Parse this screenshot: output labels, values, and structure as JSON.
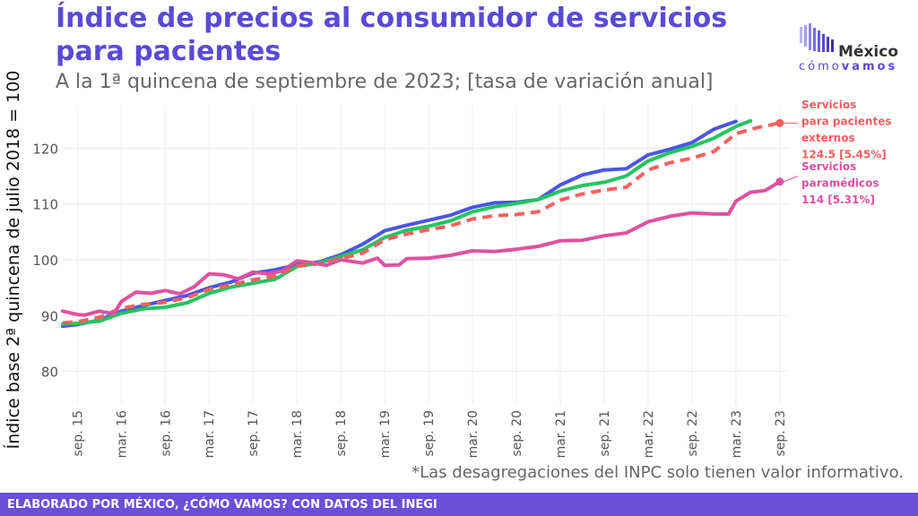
{
  "header": {
    "title": "Índice de precios al consumidor de servicios\n para pacientes",
    "subtitle": "A la 1ª quincena de septiembre de 2023; [tasa de variación anual]"
  },
  "logo": {
    "name": "México",
    "tag_light": "cómo",
    "tag_bold": "vamos",
    "color": "#5b49d6"
  },
  "footnote": "*Las desagregaciones del INPC solo tienen valor informativo.",
  "footer": {
    "text": "ELABORADO POR MÉXICO, ¿CÓMO VAMOS? CON DATOS DEL INEGI",
    "color": "#6a4fd8"
  },
  "chart_data": {
    "type": "line",
    "ylabel": "Índice base 2ª quincena de julio 2018 = 100",
    "xlabel": "",
    "x_ticks": [
      "sep. 15",
      "mar. 16",
      "sep. 16",
      "mar. 17",
      "sep. 17",
      "mar. 18",
      "sep. 18",
      "mar. 19",
      "sep. 19",
      "mar. 20",
      "sep. 20",
      "mar. 21",
      "sep. 21",
      "mar. 22",
      "sep. 22",
      "mar. 23",
      "sep. 23"
    ],
    "x_range": [
      "2015-07",
      "2023-10"
    ],
    "y_ticks": [
      80,
      90,
      100,
      110,
      120
    ],
    "ylim": [
      74,
      126
    ],
    "grid": true,
    "series": [
      {
        "key": "blue",
        "color": "#4a55e6",
        "dashed": false,
        "points": [
          [
            "2015-07",
            88.1
          ],
          [
            "2015-09",
            88.4
          ],
          [
            "2015-12",
            89.2
          ],
          [
            "2016-03",
            90.8
          ],
          [
            "2016-06",
            91.8
          ],
          [
            "2016-09",
            92.7
          ],
          [
            "2016-12",
            93.6
          ],
          [
            "2017-03",
            95.0
          ],
          [
            "2017-06",
            96.0
          ],
          [
            "2017-09",
            97.6
          ],
          [
            "2017-12",
            98.2
          ],
          [
            "2018-03",
            99.1
          ],
          [
            "2018-06",
            99.6
          ],
          [
            "2018-09",
            100.9
          ],
          [
            "2018-12",
            102.8
          ],
          [
            "2019-03",
            105.2
          ],
          [
            "2019-06",
            106.2
          ],
          [
            "2019-09",
            107.1
          ],
          [
            "2019-12",
            108.0
          ],
          [
            "2020-03",
            109.4
          ],
          [
            "2020-06",
            110.2
          ],
          [
            "2020-09",
            110.3
          ],
          [
            "2020-12",
            110.8
          ],
          [
            "2021-03",
            113.4
          ],
          [
            "2021-06",
            115.2
          ],
          [
            "2021-09",
            116.1
          ],
          [
            "2021-12",
            116.3
          ],
          [
            "2022-03",
            118.8
          ],
          [
            "2022-06",
            119.8
          ],
          [
            "2022-09",
            121.0
          ],
          [
            "2022-12",
            123.4
          ],
          [
            "2023-03",
            124.8
          ]
        ]
      },
      {
        "key": "green",
        "color": "#22c55e",
        "dashed": false,
        "points": [
          [
            "2015-07",
            88.5
          ],
          [
            "2015-09",
            88.6
          ],
          [
            "2015-12",
            89.0
          ],
          [
            "2016-03",
            90.4
          ],
          [
            "2016-06",
            91.2
          ],
          [
            "2016-09",
            91.5
          ],
          [
            "2016-12",
            92.3
          ],
          [
            "2017-03",
            94.0
          ],
          [
            "2017-06",
            95.1
          ],
          [
            "2017-09",
            95.8
          ],
          [
            "2017-12",
            96.5
          ],
          [
            "2018-03",
            98.8
          ],
          [
            "2018-06",
            99.4
          ],
          [
            "2018-09",
            100.6
          ],
          [
            "2018-12",
            101.8
          ],
          [
            "2019-03",
            104.0
          ],
          [
            "2019-06",
            105.3
          ],
          [
            "2019-09",
            106.0
          ],
          [
            "2019-12",
            107.0
          ],
          [
            "2020-03",
            108.6
          ],
          [
            "2020-06",
            109.5
          ],
          [
            "2020-09",
            110.1
          ],
          [
            "2020-12",
            110.8
          ],
          [
            "2021-03",
            112.3
          ],
          [
            "2021-06",
            113.3
          ],
          [
            "2021-09",
            113.9
          ],
          [
            "2021-12",
            115.0
          ],
          [
            "2022-03",
            117.7
          ],
          [
            "2022-06",
            119.2
          ],
          [
            "2022-09",
            120.3
          ],
          [
            "2022-12",
            121.8
          ],
          [
            "2023-03",
            123.9
          ],
          [
            "2023-05",
            124.9
          ]
        ]
      },
      {
        "key": "red",
        "color": "#fa5f5f",
        "dashed": true,
        "points": [
          [
            "2015-07",
            88.7
          ],
          [
            "2015-09",
            88.9
          ],
          [
            "2015-12",
            89.7
          ],
          [
            "2016-03",
            91.3
          ],
          [
            "2016-06",
            92.0
          ],
          [
            "2016-09",
            92.4
          ],
          [
            "2016-12",
            93.2
          ],
          [
            "2017-03",
            94.7
          ],
          [
            "2017-06",
            95.5
          ],
          [
            "2017-09",
            96.4
          ],
          [
            "2017-12",
            97.1
          ],
          [
            "2018-03",
            98.9
          ],
          [
            "2018-06",
            99.3
          ],
          [
            "2018-09",
            100.2
          ],
          [
            "2018-12",
            101.2
          ],
          [
            "2019-03",
            103.6
          ],
          [
            "2019-06",
            104.6
          ],
          [
            "2019-09",
            105.4
          ],
          [
            "2019-12",
            106.1
          ],
          [
            "2020-03",
            107.3
          ],
          [
            "2020-06",
            107.9
          ],
          [
            "2020-09",
            108.1
          ],
          [
            "2020-12",
            108.6
          ],
          [
            "2021-03",
            110.7
          ],
          [
            "2021-06",
            111.8
          ],
          [
            "2021-09",
            112.5
          ],
          [
            "2021-12",
            113.0
          ],
          [
            "2022-03",
            116.1
          ],
          [
            "2022-06",
            117.4
          ],
          [
            "2022-09",
            118.2
          ],
          [
            "2022-12",
            119.4
          ],
          [
            "2023-03",
            122.6
          ],
          [
            "2023-06",
            123.7
          ],
          [
            "2023-09",
            124.5
          ]
        ]
      },
      {
        "key": "pink",
        "color": "#e0519f",
        "dashed": false,
        "points": [
          [
            "2015-07",
            90.8
          ],
          [
            "2015-09",
            90.2
          ],
          [
            "2015-10",
            90.1
          ],
          [
            "2015-12",
            90.8
          ],
          [
            "2016-02",
            90.3
          ],
          [
            "2016-03",
            92.5
          ],
          [
            "2016-05",
            94.2
          ],
          [
            "2016-07",
            94.0
          ],
          [
            "2016-09",
            94.5
          ],
          [
            "2016-11",
            93.9
          ],
          [
            "2017-01",
            95.2
          ],
          [
            "2017-03",
            97.5
          ],
          [
            "2017-05",
            97.3
          ],
          [
            "2017-07",
            96.6
          ],
          [
            "2017-09",
            97.8
          ],
          [
            "2017-11",
            97.5
          ],
          [
            "2018-01",
            98.0
          ],
          [
            "2018-03",
            99.8
          ],
          [
            "2018-05",
            99.5
          ],
          [
            "2018-07",
            99.0
          ],
          [
            "2018-09",
            100.0
          ],
          [
            "2018-12",
            99.4
          ],
          [
            "2019-02",
            100.3
          ],
          [
            "2019-03",
            99.0
          ],
          [
            "2019-05",
            99.1
          ],
          [
            "2019-06",
            100.2
          ],
          [
            "2019-09",
            100.3
          ],
          [
            "2019-12",
            100.8
          ],
          [
            "2020-03",
            101.6
          ],
          [
            "2020-06",
            101.5
          ],
          [
            "2020-09",
            101.9
          ],
          [
            "2020-12",
            102.4
          ],
          [
            "2021-03",
            103.4
          ],
          [
            "2021-06",
            103.5
          ],
          [
            "2021-09",
            104.3
          ],
          [
            "2021-12",
            104.8
          ],
          [
            "2022-03",
            106.8
          ],
          [
            "2022-06",
            107.8
          ],
          [
            "2022-09",
            108.4
          ],
          [
            "2022-12",
            108.2
          ],
          [
            "2023-02",
            108.2
          ],
          [
            "2023-03",
            110.5
          ],
          [
            "2023-05",
            112.1
          ],
          [
            "2023-07",
            112.4
          ],
          [
            "2023-09",
            114.0
          ]
        ]
      }
    ],
    "annotations": [
      {
        "series": "red",
        "color": "#fa5f5f",
        "lines": [
          "Servicios",
          "para pacientes",
          "externos",
          "124.5 [5.45%]"
        ]
      },
      {
        "series": "pink",
        "color": "#e0519f",
        "lines": [
          "Servicios",
          "paramédicos",
          "114 [5.31%]"
        ]
      }
    ]
  }
}
